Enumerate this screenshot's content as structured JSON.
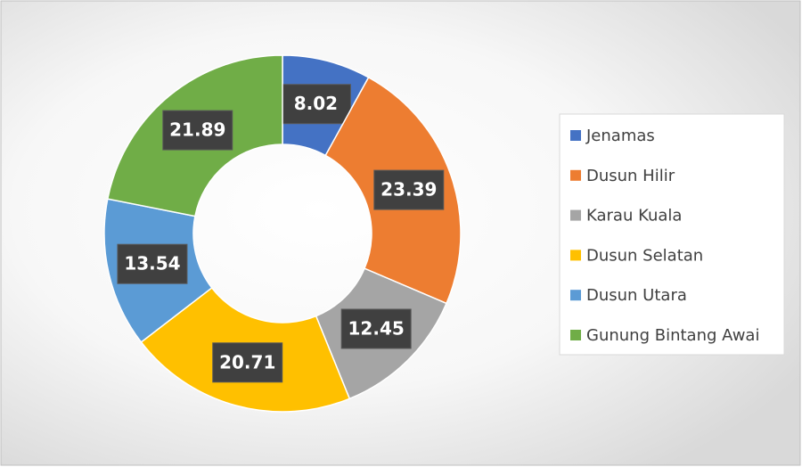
{
  "chart_data": {
    "type": "donut",
    "categories": [
      "Jenamas",
      "Dusun Hilir",
      "Karau Kuala",
      "Dusun Selatan",
      "Dusun Utara",
      "Gunung Bintang Awai"
    ],
    "values": [
      8.02,
      23.39,
      12.45,
      20.71,
      13.54,
      21.89
    ],
    "colors": [
      "#4472c4",
      "#ed7d31",
      "#a5a5a5",
      "#ffc000",
      "#5b9bd5",
      "#70ad47"
    ],
    "legend": "right"
  }
}
